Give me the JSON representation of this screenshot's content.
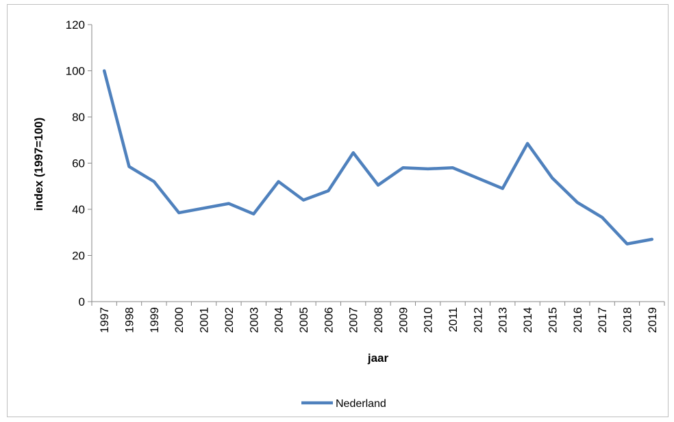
{
  "chart_data": {
    "type": "line",
    "title": "",
    "xlabel": "jaar",
    "ylabel": "index (1997=100)",
    "ylim": [
      0,
      120
    ],
    "yticks": [
      0,
      20,
      40,
      60,
      80,
      100,
      120
    ],
    "grid": false,
    "legend_position": "bottom",
    "categories": [
      "1997",
      "1998",
      "1999",
      "2000",
      "2001",
      "2002",
      "2003",
      "2004",
      "2005",
      "2006",
      "2007",
      "2008",
      "2009",
      "2010",
      "2011",
      "2012",
      "2013",
      "2014",
      "2015",
      "2016",
      "2017",
      "2018",
      "2019"
    ],
    "series": [
      {
        "name": "Nederland",
        "color": "#4f81bd",
        "values": [
          100,
          58.5,
          52,
          38.5,
          40.5,
          42.5,
          38,
          52,
          44,
          48,
          64.5,
          50.5,
          58,
          57.5,
          58,
          53.5,
          49,
          68.5,
          53.5,
          43,
          36.5,
          25,
          27
        ]
      }
    ]
  }
}
